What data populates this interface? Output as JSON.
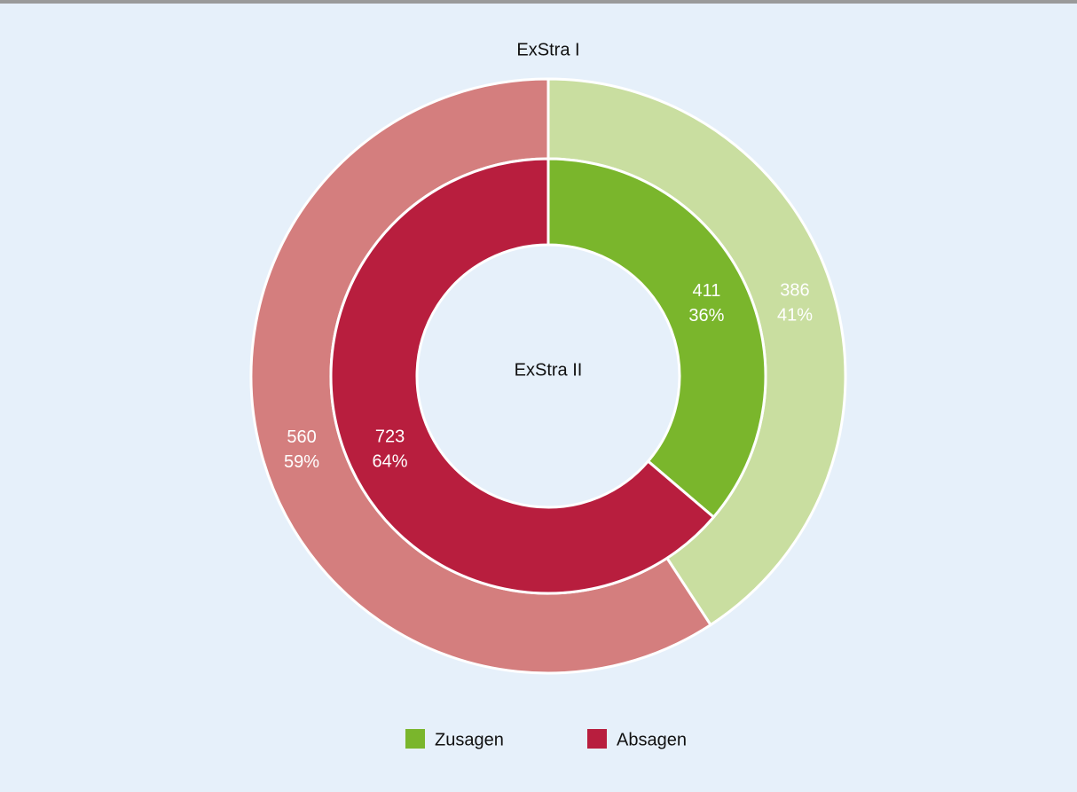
{
  "chart_data": {
    "type": "donut",
    "categories": [
      "Zusagen",
      "Absagen"
    ],
    "legend_colors": [
      "#7ab62c",
      "#b81e3e"
    ],
    "rings": [
      {
        "name": "ExStra I",
        "values": [
          386,
          560
        ],
        "percent_labels": [
          "41%",
          "59%"
        ],
        "colors": [
          "#c9dea0",
          "#d47e7e"
        ]
      },
      {
        "name": "ExStra II",
        "values": [
          411,
          723
        ],
        "percent_labels": [
          "36%",
          "64%"
        ],
        "colors": [
          "#7ab62c",
          "#b81e3e"
        ]
      }
    ]
  }
}
